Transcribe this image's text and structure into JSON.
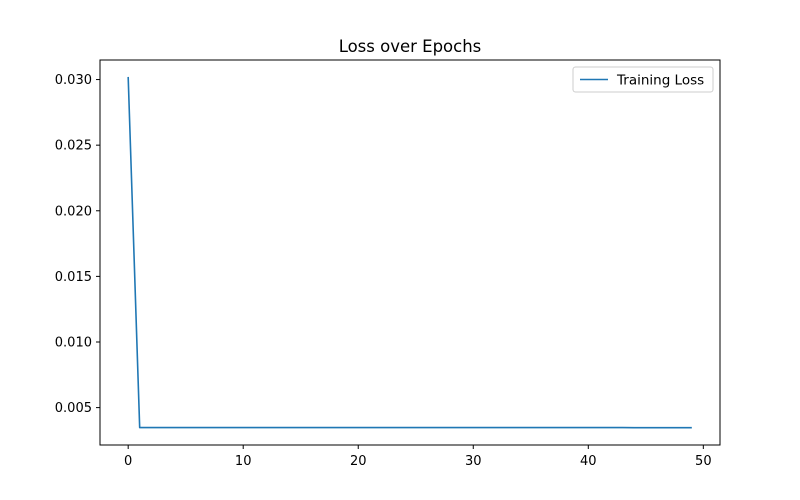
{
  "chart_data": {
    "type": "line",
    "title": "Loss over Epochs",
    "xlabel": "",
    "ylabel": "",
    "xlim": [
      -2.45,
      51.45
    ],
    "ylim": [
      0.00215,
      0.03149
    ],
    "xticks": [
      0,
      10,
      20,
      30,
      40,
      50
    ],
    "yticks": [
      0.005,
      0.01,
      0.015,
      0.02,
      0.025,
      0.03
    ],
    "xtick_labels": [
      "0",
      "10",
      "20",
      "30",
      "40",
      "50"
    ],
    "ytick_labels": [
      "0.005",
      "0.010",
      "0.015",
      "0.020",
      "0.025",
      "0.030"
    ],
    "grid": false,
    "legend_position": "top-right",
    "series": [
      {
        "name": "Training Loss",
        "color": "#1f77b4",
        "x": [
          0,
          1,
          2,
          3,
          4,
          5,
          6,
          7,
          8,
          9,
          10,
          11,
          12,
          13,
          14,
          15,
          16,
          17,
          18,
          19,
          20,
          21,
          22,
          23,
          24,
          25,
          26,
          27,
          28,
          29,
          30,
          31,
          32,
          33,
          34,
          35,
          36,
          37,
          38,
          39,
          40,
          41,
          42,
          43,
          44,
          45,
          46,
          47,
          48,
          49
        ],
        "values": [
          0.0302,
          0.00348,
          0.00348,
          0.00348,
          0.00348,
          0.00348,
          0.00348,
          0.00348,
          0.00348,
          0.00348,
          0.00348,
          0.00348,
          0.00348,
          0.00348,
          0.00348,
          0.00348,
          0.00348,
          0.00348,
          0.00348,
          0.00348,
          0.00348,
          0.00348,
          0.00348,
          0.00348,
          0.00348,
          0.00348,
          0.00348,
          0.00348,
          0.00348,
          0.00348,
          0.00348,
          0.00348,
          0.00348,
          0.00348,
          0.00348,
          0.00348,
          0.00348,
          0.00348,
          0.00348,
          0.00348,
          0.00348,
          0.00348,
          0.00348,
          0.00348,
          0.00347,
          0.00347,
          0.00347,
          0.00347,
          0.00347,
          0.00347
        ]
      }
    ]
  }
}
